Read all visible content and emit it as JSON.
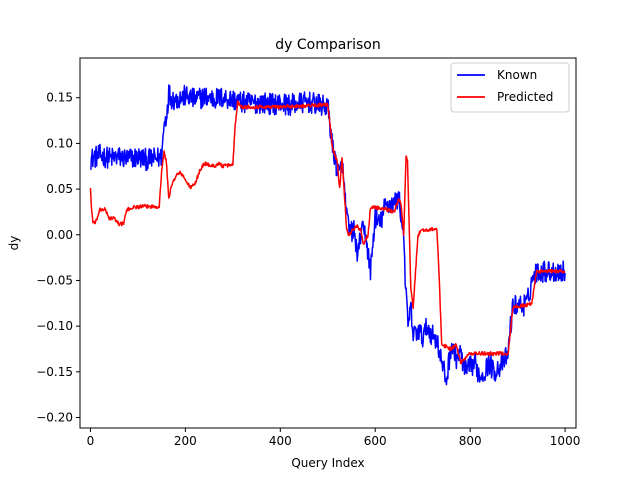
{
  "chart_data": {
    "type": "line",
    "title": "dy Comparison",
    "xlabel": "Query Index",
    "ylabel": "dy",
    "xlim": [
      -22,
      1023
    ],
    "ylim": [
      -0.2115,
      0.1935
    ],
    "xticks": [
      0,
      200,
      400,
      600,
      800,
      1000
    ],
    "yticks": [
      -0.2,
      -0.15,
      -0.1,
      -0.05,
      0.0,
      0.05,
      0.1,
      0.15
    ],
    "xtick_labels": [
      "0",
      "200",
      "400",
      "600",
      "800",
      "1000"
    ],
    "ytick_labels": [
      "−0.20",
      "−0.15",
      "−0.10",
      "−0.05",
      "0.00",
      "0.05",
      "0.10",
      "0.15"
    ],
    "grid": false,
    "legend_position": "top-right",
    "series": [
      {
        "name": "Known",
        "color": "#0000ff",
        "noise": 0.012,
        "x": [
          0,
          20,
          40,
          60,
          80,
          100,
          120,
          140,
          150,
          155,
          160,
          165,
          170,
          180,
          200,
          220,
          240,
          260,
          280,
          300,
          310,
          320,
          340,
          360,
          380,
          400,
          420,
          440,
          460,
          480,
          500,
          505,
          510,
          515,
          520,
          525,
          530,
          540,
          545,
          550,
          555,
          560,
          565,
          570,
          580,
          590,
          600,
          610,
          620,
          630,
          640,
          650,
          655,
          660,
          665,
          670,
          675,
          680,
          690,
          700,
          710,
          720,
          730,
          740,
          750,
          760,
          770,
          780,
          790,
          800,
          810,
          820,
          830,
          840,
          850,
          860,
          870,
          880,
          885,
          890,
          900,
          910,
          920,
          930,
          940,
          950,
          960,
          980,
          1000
        ],
        "y": [
          0.083,
          0.087,
          0.084,
          0.085,
          0.083,
          0.085,
          0.082,
          0.084,
          0.085,
          0.12,
          0.13,
          0.155,
          0.15,
          0.148,
          0.152,
          0.148,
          0.151,
          0.149,
          0.15,
          0.148,
          0.146,
          0.145,
          0.144,
          0.145,
          0.143,
          0.144,
          0.142,
          0.144,
          0.145,
          0.142,
          0.14,
          0.12,
          0.095,
          0.085,
          0.07,
          0.065,
          0.08,
          0.02,
          0.005,
          0.003,
          0.005,
          -0.015,
          -0.02,
          0.005,
          0.0,
          -0.04,
          0.02,
          0.01,
          0.03,
          0.034,
          0.035,
          0.04,
          0.02,
          0.0,
          -0.07,
          -0.1,
          -0.08,
          -0.11,
          -0.105,
          -0.112,
          -0.1,
          -0.11,
          -0.115,
          -0.14,
          -0.16,
          -0.12,
          -0.135,
          -0.13,
          -0.15,
          -0.145,
          -0.14,
          -0.155,
          -0.15,
          -0.14,
          -0.15,
          -0.145,
          -0.14,
          -0.13,
          -0.1,
          -0.08,
          -0.075,
          -0.078,
          -0.075,
          -0.05,
          -0.04,
          -0.04,
          -0.04,
          -0.04,
          -0.04
        ]
      },
      {
        "name": "Predicted",
        "color": "#ff0000",
        "noise": 0.002,
        "x": [
          0,
          2,
          5,
          10,
          20,
          30,
          40,
          50,
          60,
          70,
          75,
          80,
          90,
          110,
          130,
          145,
          150,
          155,
          160,
          165,
          170,
          180,
          190,
          200,
          210,
          220,
          230,
          240,
          260,
          270,
          280,
          300,
          305,
          310,
          320,
          360,
          400,
          440,
          480,
          500,
          505,
          510,
          520,
          525,
          530,
          540,
          545,
          560,
          570,
          575,
          580,
          585,
          590,
          595,
          600,
          620,
          640,
          650,
          655,
          660,
          665,
          668,
          672,
          675,
          680,
          690,
          700,
          730,
          735,
          740,
          760,
          770,
          780,
          790,
          800,
          820,
          850,
          880,
          890,
          900,
          920,
          930,
          940,
          960,
          980,
          1000
        ],
        "y": [
          0.052,
          0.03,
          0.015,
          0.012,
          0.027,
          0.028,
          0.018,
          0.018,
          0.012,
          0.012,
          0.025,
          0.028,
          0.03,
          0.031,
          0.031,
          0.031,
          0.07,
          0.09,
          0.08,
          0.04,
          0.052,
          0.065,
          0.068,
          0.06,
          0.052,
          0.055,
          0.07,
          0.078,
          0.075,
          0.078,
          0.075,
          0.077,
          0.12,
          0.145,
          0.14,
          0.14,
          0.14,
          0.141,
          0.142,
          0.142,
          0.12,
          0.095,
          0.08,
          0.05,
          0.085,
          0.005,
          0.0,
          0.01,
          0.005,
          -0.01,
          -0.005,
          0.0,
          0.03,
          0.03,
          0.03,
          0.028,
          0.025,
          0.04,
          0.03,
          0.0,
          0.088,
          0.08,
          0.0,
          -0.06,
          -0.08,
          0.0,
          0.005,
          0.006,
          -0.05,
          -0.12,
          -0.125,
          -0.12,
          -0.14,
          -0.135,
          -0.13,
          -0.13,
          -0.13,
          -0.13,
          -0.08,
          -0.078,
          -0.077,
          -0.075,
          -0.04,
          -0.04,
          -0.04,
          -0.04
        ]
      }
    ]
  }
}
